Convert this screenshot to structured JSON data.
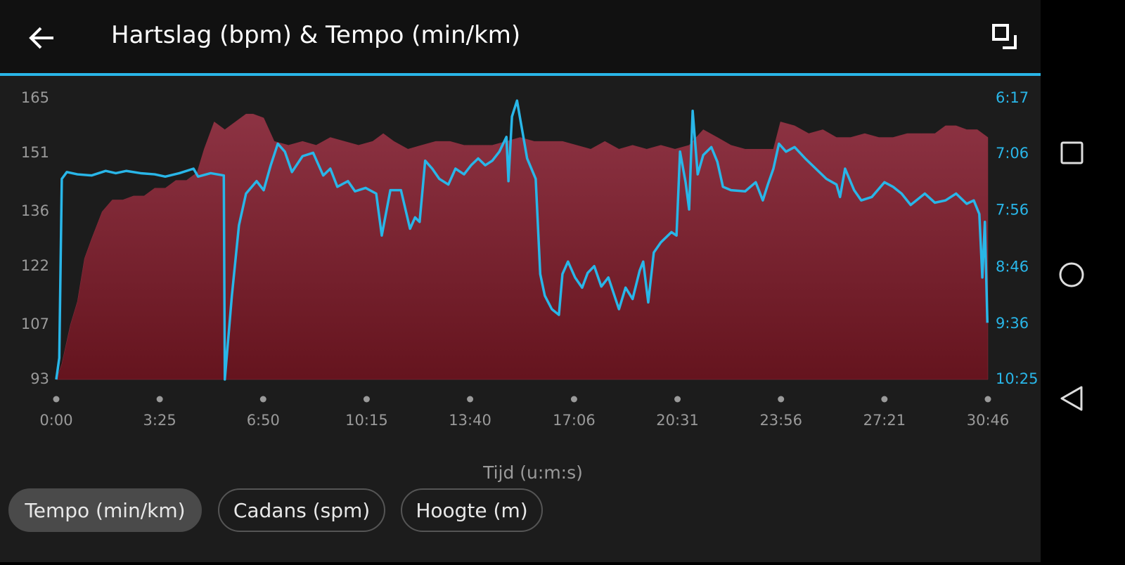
{
  "header": {
    "title": "Hartslag (bpm) & Tempo (min/km)"
  },
  "chart_data": {
    "type": "area",
    "xlabel": "Tijd (u:m:s)",
    "xlim": [
      0,
      1846
    ],
    "xticks": [
      {
        "value": 0,
        "label": "0:00"
      },
      {
        "value": 205,
        "label": "3:25"
      },
      {
        "value": 410,
        "label": "6:50"
      },
      {
        "value": 615,
        "label": "10:15"
      },
      {
        "value": 820,
        "label": "13:40"
      },
      {
        "value": 1026,
        "label": "17:06"
      },
      {
        "value": 1231,
        "label": "20:31"
      },
      {
        "value": 1436,
        "label": "23:56"
      },
      {
        "value": 1641,
        "label": "27:21"
      },
      {
        "value": 1846,
        "label": "30:46"
      }
    ],
    "ylim": [
      93,
      165
    ],
    "yticks": [
      93,
      107,
      122,
      136,
      151,
      165
    ],
    "y2lim": [
      625,
      377
    ],
    "y2ticks": [
      {
        "value": 377,
        "label": "6:17"
      },
      {
        "value": 426,
        "label": "7:06"
      },
      {
        "value": 476,
        "label": "7:56"
      },
      {
        "value": 526,
        "label": "8:46"
      },
      {
        "value": 576,
        "label": "9:36"
      },
      {
        "value": 625,
        "label": "10:25"
      }
    ],
    "series": [
      {
        "type": "area",
        "color": "#8b2e3e",
        "x": [
          0,
          11,
          28,
          42,
          56,
          70,
          91,
          111,
          132,
          153,
          174,
          195,
          216,
          237,
          258,
          279,
          293,
          313,
          334,
          355,
          376,
          390,
          411,
          432,
          460,
          488,
          515,
          543,
          571,
          599,
          627,
          648,
          669,
          697,
          724,
          752,
          780,
          808,
          836,
          864,
          892,
          919,
          947,
          975,
          1003,
          1031,
          1059,
          1087,
          1115,
          1142,
          1170,
          1198,
          1226,
          1254,
          1282,
          1310,
          1337,
          1365,
          1393,
          1421,
          1435,
          1463,
          1491,
          1519,
          1546,
          1574,
          1602,
          1630,
          1658,
          1686,
          1714,
          1741,
          1762,
          1783,
          1804,
          1825,
          1846
        ],
        "values": [
          93,
          97,
          107,
          113,
          124,
          129,
          136,
          139,
          139,
          140,
          140,
          142,
          142,
          144,
          144,
          146,
          152,
          159,
          157,
          159,
          161,
          161,
          160,
          154,
          153,
          154,
          153,
          155,
          154,
          153,
          154,
          156,
          154,
          152,
          153,
          154,
          154,
          153,
          153,
          153,
          154,
          155,
          154,
          154,
          154,
          153,
          152,
          154,
          152,
          153,
          152,
          153,
          152,
          153,
          157,
          155,
          153,
          152,
          152,
          152,
          159,
          158,
          156,
          157,
          155,
          155,
          156,
          155,
          155,
          156,
          156,
          156,
          158,
          158,
          157,
          157,
          155
        ]
      },
      {
        "type": "line",
        "color": "#29b6e8",
        "axis": "y2",
        "x": [
          0,
          6,
          11,
          21,
          42,
          70,
          98,
          118,
          139,
          167,
          195,
          216,
          244,
          272,
          281,
          306,
          332,
          334,
          348,
          362,
          376,
          397,
          411,
          425,
          439,
          453,
          467,
          488,
          509,
          529,
          543,
          557,
          578,
          592,
          613,
          634,
          645,
          662,
          683,
          701,
          711,
          720,
          731,
          745,
          759,
          777,
          791,
          808,
          822,
          836,
          850,
          864,
          878,
          892,
          896,
          903,
          913,
          922,
          933,
          950,
          959,
          968,
          982,
          996,
          1003,
          1014,
          1028,
          1042,
          1053,
          1066,
          1080,
          1094,
          1115,
          1128,
          1142,
          1156,
          1163,
          1173,
          1184,
          1198,
          1219,
          1229,
          1236,
          1247,
          1254,
          1261,
          1271,
          1282,
          1298,
          1310,
          1321,
          1337,
          1365,
          1386,
          1400,
          1410,
          1421,
          1432,
          1446,
          1463,
          1484,
          1505,
          1526,
          1546,
          1553,
          1563,
          1581,
          1595,
          1616,
          1641,
          1658,
          1675,
          1693,
          1721,
          1741,
          1762,
          1783,
          1804,
          1818,
          1829,
          1835,
          1840,
          1845
        ],
        "values": [
          625,
          606,
          448,
          442,
          444,
          445,
          441,
          443,
          441,
          443,
          444,
          446,
          443,
          439,
          446,
          443,
          445,
          625,
          551,
          489,
          461,
          450,
          458,
          436,
          417,
          424,
          442,
          428,
          425,
          445,
          439,
          455,
          450,
          459,
          456,
          461,
          498,
          458,
          458,
          492,
          482,
          486,
          432,
          439,
          448,
          453,
          439,
          444,
          436,
          430,
          436,
          432,
          424,
          411,
          450,
          393,
          379,
          402,
          430,
          448,
          532,
          551,
          563,
          568,
          532,
          521,
          535,
          544,
          531,
          525,
          543,
          535,
          563,
          544,
          554,
          529,
          521,
          557,
          513,
          504,
          495,
          498,
          424,
          451,
          475,
          388,
          444,
          427,
          420,
          433,
          455,
          458,
          459,
          451,
          467,
          453,
          439,
          417,
          424,
          420,
          430,
          439,
          448,
          453,
          464,
          439,
          458,
          467,
          464,
          451,
          455,
          461,
          471,
          461,
          469,
          467,
          461,
          470,
          467,
          479,
          535,
          486,
          575
        ]
      }
    ]
  },
  "buttons": {
    "labels": [
      "Tempo (min/km)",
      "Cadans (spm)",
      "Hoogte (m)"
    ],
    "selected": 0
  }
}
